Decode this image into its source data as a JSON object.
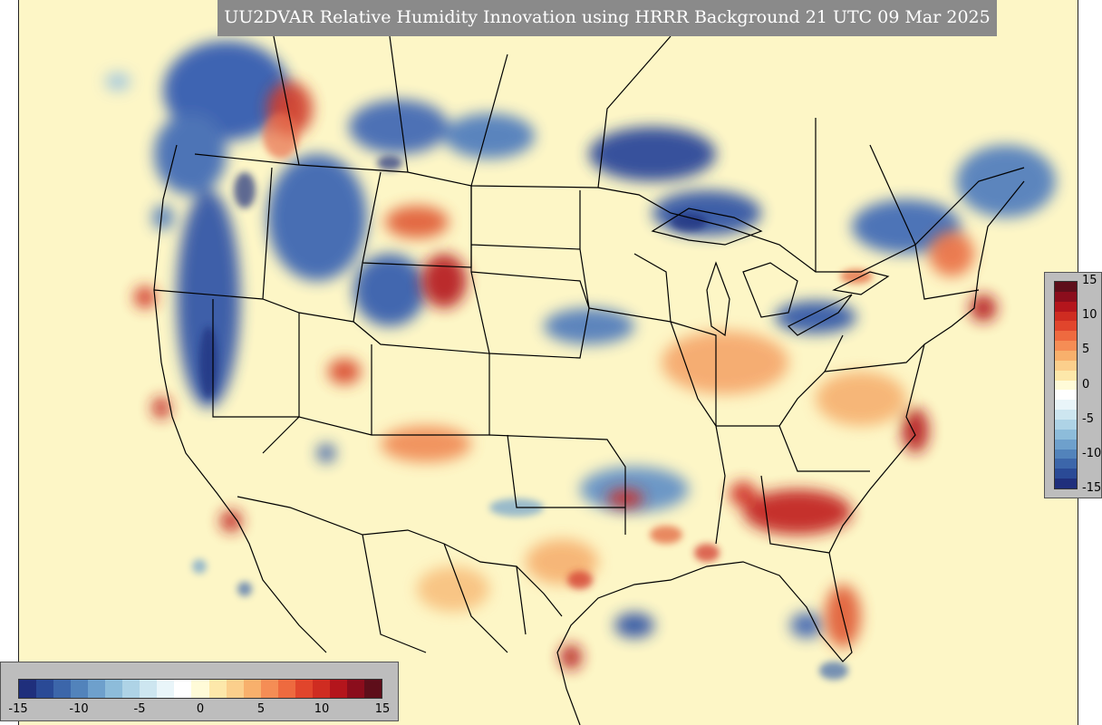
{
  "title": "UU2DVAR Relative Humidity Innovation using HRRR Background 21 UTC 09 Mar 2025",
  "colorbar": {
    "ticks": [
      "15",
      "10",
      "5",
      "0",
      "-5",
      "-10",
      "-15"
    ],
    "colors": [
      "#5e0e1a",
      "#8b0d1c",
      "#b4151c",
      "#cf2c21",
      "#e1452c",
      "#ee6a3f",
      "#f58d55",
      "#f8b06c",
      "#fbcf8c",
      "#fde8aa",
      "#fffbd8",
      "#ffffff",
      "#e9f5f9",
      "#cde6f0",
      "#aed3e6",
      "#8dbcda",
      "#6ea0cc",
      "#5283bb",
      "#3c66aa",
      "#2a4a96",
      "#1f2f7c"
    ],
    "bottom_ticks": [
      "-15",
      "-10",
      "-5",
      "0",
      "5",
      "10",
      "15"
    ]
  },
  "map": {
    "background_color": "#fdf6c6",
    "region": "Continental United States",
    "variable": "Relative Humidity Innovation"
  }
}
